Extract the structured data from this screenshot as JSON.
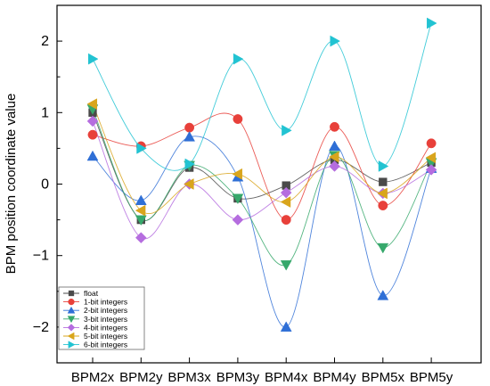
{
  "chart_data": {
    "type": "line",
    "title": "",
    "xlabel": "",
    "ylabel": "BPM position coordinate value",
    "categories": [
      "BPM2x",
      "BPM2y",
      "BPM3x",
      "BPM3y",
      "BPM4x",
      "BPM4y",
      "BPM5x",
      "BPM5y"
    ],
    "ylim": [
      -2.5,
      2.5
    ],
    "yticks": [
      "−2",
      "−1",
      "0",
      "1",
      "2"
    ],
    "ytick_values": [
      -2,
      -1,
      0,
      1,
      2
    ],
    "grid": false,
    "legend_position": "bottom-left",
    "series": [
      {
        "name": "float",
        "color": "#4a4a4a",
        "marker": "square",
        "values": [
          1.0,
          -0.5,
          0.23,
          -0.2,
          -0.02,
          0.34,
          0.03,
          0.3
        ]
      },
      {
        "name": "1-bit integers",
        "color": "#e8403a",
        "marker": "circle",
        "values": [
          0.69,
          0.53,
          0.79,
          0.91,
          -0.5,
          0.8,
          -0.3,
          0.57
        ]
      },
      {
        "name": "2-bit integers",
        "color": "#2f6fd6",
        "marker": "triangle-up",
        "values": [
          0.39,
          -0.23,
          0.66,
          0.1,
          -2.0,
          0.53,
          -1.56,
          0.22
        ]
      },
      {
        "name": "3-bit integers",
        "color": "#36a86b",
        "marker": "triangle-down",
        "values": [
          1.05,
          -0.5,
          0.26,
          -0.2,
          -1.13,
          0.4,
          -0.89,
          0.3
        ]
      },
      {
        "name": "4-bit integers",
        "color": "#b56ddf",
        "marker": "diamond",
        "values": [
          0.88,
          -0.75,
          0.0,
          -0.5,
          -0.12,
          0.25,
          -0.13,
          0.2
        ]
      },
      {
        "name": "5-bit integers",
        "color": "#d9a51c",
        "marker": "triangle-left",
        "values": [
          1.12,
          -0.37,
          0.0,
          0.14,
          -0.25,
          0.38,
          -0.13,
          0.37
        ]
      },
      {
        "name": "6-bit integers",
        "color": "#22c3d2",
        "marker": "triangle-right",
        "values": [
          1.75,
          0.5,
          0.28,
          1.75,
          0.75,
          2.0,
          0.25,
          2.25
        ]
      }
    ]
  }
}
